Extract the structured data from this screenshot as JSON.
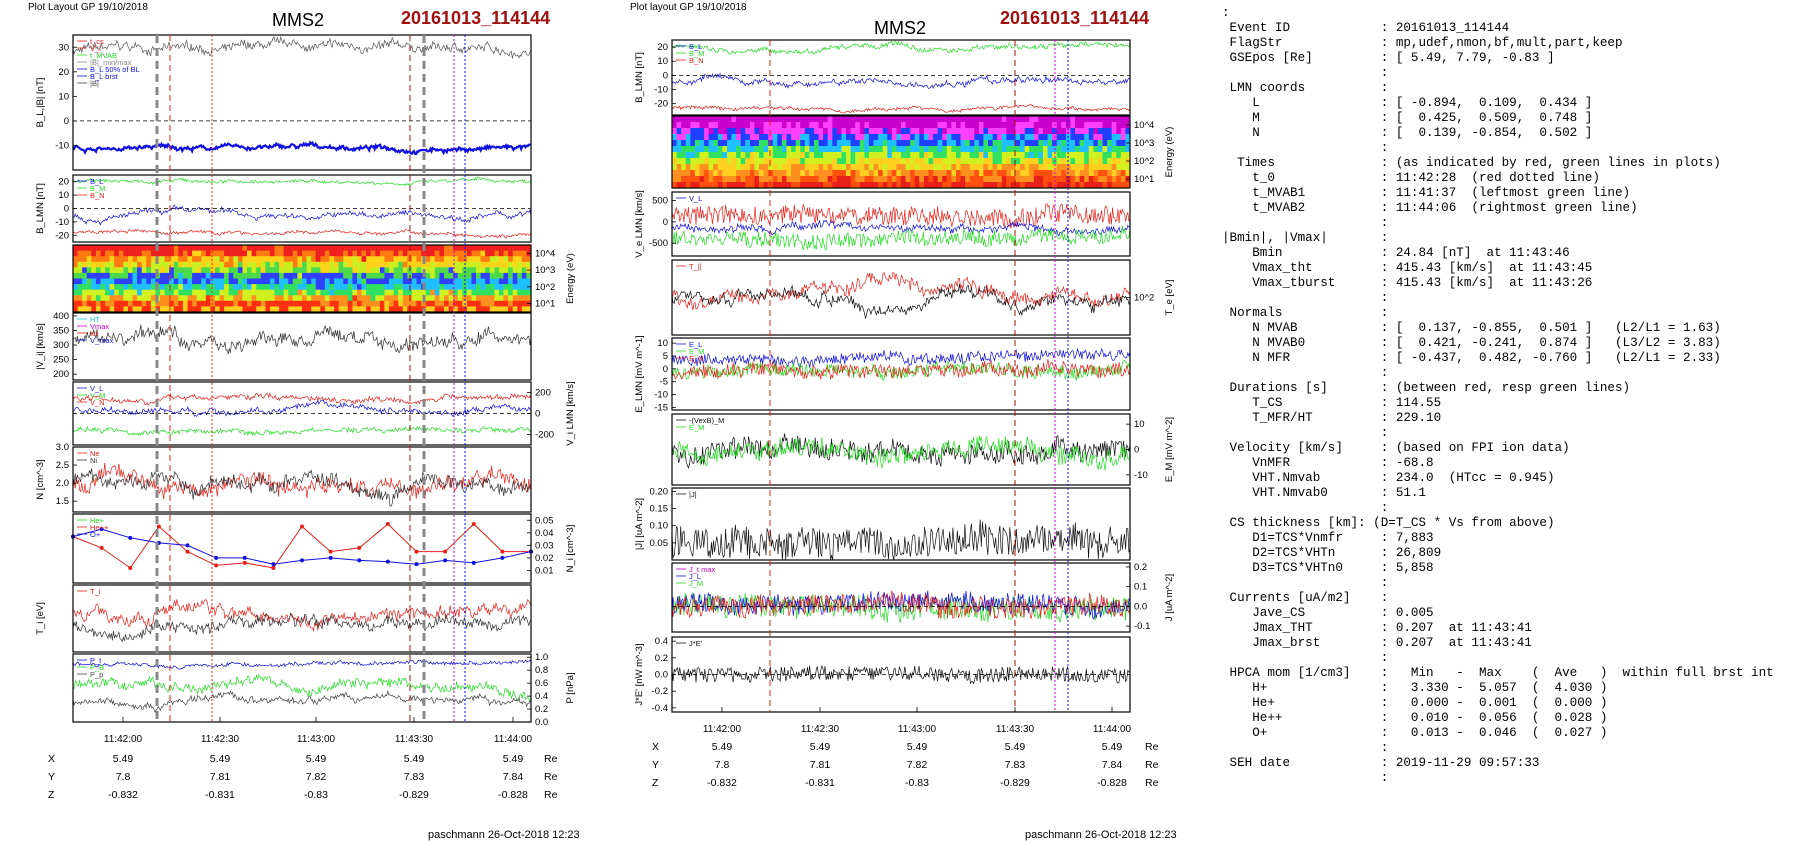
{
  "page": {
    "left": {
      "header": "Plot Layout GP 19/10/2018",
      "credit": "paschmann 26-Oct-2018 12:23"
    },
    "right": {
      "header": "Plot layout GP 19/10/2018",
      "credit": "paschmann 26-Oct-2018 12:23"
    },
    "spacecraft": "MMS2",
    "event": "20161013_114144"
  },
  "time_axis": {
    "ticks": [
      "11:42:00",
      "11:42:30",
      "11:43:00",
      "11:43:30",
      "11:44:00"
    ]
  },
  "coords": {
    "rows": [
      "X",
      "Y",
      "Z"
    ],
    "unit": "Re",
    "values": [
      [
        "5.49",
        "5.49",
        "5.49",
        "5.49",
        "5.49"
      ],
      [
        "7.8",
        "7.81",
        "7.82",
        "7.83",
        "7.84"
      ],
      [
        "-0.832",
        "-0.831",
        "-0.83",
        "-0.829",
        "-0.828"
      ]
    ]
  },
  "colors": {
    "red": "#e8201a",
    "green": "#22dd22",
    "blue": "#1010e0",
    "magenta": "#cc00cc",
    "darkred": "#a01010",
    "grey": "#888888",
    "cyan": "#22cccc"
  },
  "chart_data": [
    {
      "type": "line",
      "panel": "left-1",
      "ylabel": "B_L,|B| [nT]",
      "ylim": [
        -20,
        35
      ],
      "yticks": [
        "30",
        "20",
        "10",
        "0",
        "-10"
      ],
      "legend": [
        "t_cs",
        "V_l",
        "t_MVAB",
        "|B|_min/max",
        "B_L 50% of BL",
        "B_L brst",
        "|B|"
      ]
    },
    {
      "type": "line",
      "panel": "left-2",
      "ylabel": "B_LMN [nT]",
      "ylim": [
        -25,
        25
      ],
      "yticks": [
        "20",
        "10",
        "0",
        "-10",
        "-20"
      ],
      "legend": [
        "B_L",
        "B_M",
        "B_N"
      ]
    },
    {
      "type": "heatmap",
      "panel": "left-3",
      "ylabel": "Energy (eV)",
      "yticks": [
        "10^4",
        "10^3",
        "10^2",
        "10^1"
      ]
    },
    {
      "type": "line",
      "panel": "left-4",
      "ylabel": "|V_i| [km/s]",
      "ylim": [
        180,
        410
      ],
      "yticks": [
        "400",
        "350",
        "300",
        "250",
        "200"
      ],
      "legend": [
        "HT",
        "Vmax",
        "tct",
        "V_max"
      ]
    },
    {
      "type": "line",
      "panel": "left-5",
      "ylabel": "V_i LMN [km/s]",
      "ylim": [
        -300,
        300
      ],
      "yticks": [
        "200",
        "0",
        "-200"
      ],
      "legend": [
        "V_L",
        "V_M",
        "V_N"
      ]
    },
    {
      "type": "line",
      "panel": "left-6",
      "ylabel": "N [cm^-3]",
      "ylim": [
        1.2,
        3.0
      ],
      "yticks": [
        "3.0",
        "2.5",
        "2.0",
        "1.5"
      ],
      "legend": [
        "Ne",
        "Ni"
      ]
    },
    {
      "type": "line",
      "panel": "left-7",
      "ylabel": "N_i [cm^-3]",
      "ylim": [
        0,
        0.055
      ],
      "yticks": [
        "0.05",
        "0.04",
        "0.03",
        "0.02",
        "0.01"
      ],
      "legend": [
        "He+",
        "He++",
        "O+"
      ],
      "series": [
        {
          "name": "He++",
          "color": "red",
          "values": [
            0.037,
            0.028,
            0.012,
            0.045,
            0.025,
            0.014,
            0.016,
            0.012,
            0.045,
            0.025,
            0.028,
            0.047,
            0.025,
            0.025,
            0.047,
            0.025,
            0.025
          ]
        },
        {
          "name": "O+",
          "color": "blue",
          "values": [
            0.037,
            0.043,
            0.036,
            0.032,
            0.03,
            0.02,
            0.02,
            0.015,
            0.018,
            0.02,
            0.018,
            0.017,
            0.015,
            0.018,
            0.016,
            0.02,
            0.025
          ]
        }
      ]
    },
    {
      "type": "line",
      "panel": "left-8",
      "ylabel": "T_i [eV]",
      "legend": [
        "T_i"
      ]
    },
    {
      "type": "line",
      "panel": "left-9",
      "ylabel": "P [nPa]",
      "ylim": [
        0,
        1.05
      ],
      "yticks": [
        "1.0",
        "0.8",
        "0.6",
        "0.4",
        "0.2",
        "0.0"
      ],
      "legend": [
        "P_t",
        "P_B",
        "P_p"
      ]
    },
    {
      "type": "line",
      "panel": "right-1",
      "ylabel": "B_LMN [nT]",
      "ylim": [
        -28,
        25
      ],
      "yticks": [
        "20",
        "10",
        "0",
        "-10",
        "-20"
      ],
      "legend": [
        "B_L",
        "B_M",
        "B_N"
      ]
    },
    {
      "type": "heatmap",
      "panel": "right-2",
      "ylabel": "Energy (eV)",
      "yticks": [
        "10^4",
        "10^3",
        "10^2",
        "10^1"
      ]
    },
    {
      "type": "line",
      "panel": "right-3",
      "ylabel": "V_e LMN [km/s]",
      "ylim": [
        -800,
        700
      ],
      "yticks": [
        "500",
        "0",
        "-500"
      ],
      "legend": [
        "V_L"
      ]
    },
    {
      "type": "line",
      "panel": "right-4",
      "ylabel": "T_e [eV]",
      "yticks": [
        "10^2"
      ],
      "legend": [
        "T_||"
      ]
    },
    {
      "type": "line",
      "panel": "right-5",
      "ylabel": "E_LMN [mV m^-1]",
      "ylim": [
        -16,
        12
      ],
      "yticks": [
        "10",
        "5",
        "0",
        "-5",
        "-10",
        "-15"
      ],
      "legend": [
        "E_L",
        "E_M",
        "E_N"
      ]
    },
    {
      "type": "line",
      "panel": "right-6",
      "ylabel": "E_M [mV m^-2]",
      "ylim": [
        -14,
        14
      ],
      "yticks": [
        "10",
        "0",
        "-10"
      ],
      "legend": [
        "-(VexB)_M",
        "E_M"
      ]
    },
    {
      "type": "line",
      "panel": "right-7",
      "ylabel": "|J| [uA m^-2]",
      "ylim": [
        0,
        0.21
      ],
      "yticks": [
        "0.20",
        "0.15",
        "0.10",
        "0.05"
      ],
      "legend": [
        "|J|"
      ]
    },
    {
      "type": "line",
      "panel": "right-8",
      "ylabel": "J [uA m^-2]",
      "ylim": [
        -0.13,
        0.22
      ],
      "yticks": [
        "0.2",
        "0.1",
        "0.0",
        "-0.1"
      ],
      "legend": [
        "J_t max",
        "J_L",
        "J_M"
      ]
    },
    {
      "type": "line",
      "panel": "right-9",
      "ylabel": "J*E' [nW m^-3]",
      "ylim": [
        -0.45,
        0.45
      ],
      "yticks": [
        "0.4",
        "0.2",
        "0.0",
        "-0.2",
        "-0.4"
      ],
      "legend": [
        "J*E'"
      ]
    }
  ],
  "info": [
    ":",
    " Event ID            : 20161013_114144",
    " FlagStr             : mp,udef,nmon,bf,mult,part,keep",
    " GSEpos [Re]         : [ 5.49, 7.79, -0.83 ]",
    "                     :",
    " LMN coords          :",
    "    L                : [ -0.894,  0.109,  0.434 ]",
    "    M                : [  0.425,  0.509,  0.748 ]",
    "    N                : [  0.139, -0.854,  0.502 ]",
    "                     :",
    "  Times              : (as indicated by red, green lines in plots)",
    "    t_0              : 11:42:28  (red dotted line)",
    "    t_MVAB1          : 11:41:37  (leftmost green line)",
    "    t_MVAB2          : 11:44:06  (rightmost green line)",
    "                     :",
    "|Bmin|, |Vmax|       :",
    "    Bmin             : 24.84 [nT]  at 11:43:46",
    "    Vmax_tht         : 415.43 [km/s]  at 11:43:45",
    "    Vmax_tburst      : 415.43 [km/s]  at 11:43:26",
    "                     :",
    " Normals             :",
    "    N MVAB           : [  0.137, -0.855,  0.501 ]   (L2/L1 = 1.63)",
    "    N MVAB0          : [  0.421, -0.241,  0.874 ]   (L3/L2 = 3.83)",
    "    N MFR            : [ -0.437,  0.482, -0.760 ]   (L2/L1 = 2.33)",
    "                     :",
    " Durations [s]       : (between red, resp green lines)",
    "    T_CS             : 114.55",
    "    T_MFR/HT         : 229.10",
    "                     :",
    " Velocity [km/s]     : (based on FPI ion data)",
    "    VnMFR            : -68.8",
    "    VHT.Nmvab        : 234.0  (HTcc = 0.945)",
    "    VHT.Nmvab0       : 51.1",
    "                     :",
    " CS thickness [km]: (D=T_CS * Vs from above)",
    "    D1=TCS*Vnmfr     : 7,883",
    "    D2=TCS*VHTn      : 26,809",
    "    D3=TCS*VHTn0     : 5,858",
    "                     :",
    " Currents [uA/m2]    :",
    "    Jave_CS          : 0.005",
    "    Jmax_THT         : 0.207  at 11:43:41",
    "    Jmax_brst        : 0.207  at 11:43:41",
    "                     :",
    " HPCA mom [1/cm3]    :   Min   -  Max    (  Ave   )  within full brst int",
    "    H+               :   3.330 -  5.057  (  4.030 )",
    "    He+              :   0.000 -  0.001  (  0.000 )",
    "    He++             :   0.010 -  0.056  (  0.028 )",
    "    O+               :   0.013 -  0.046  (  0.027 )",
    "                     :",
    " SEH date            : 2019-11-29 09:57:33",
    "                     :"
  ]
}
